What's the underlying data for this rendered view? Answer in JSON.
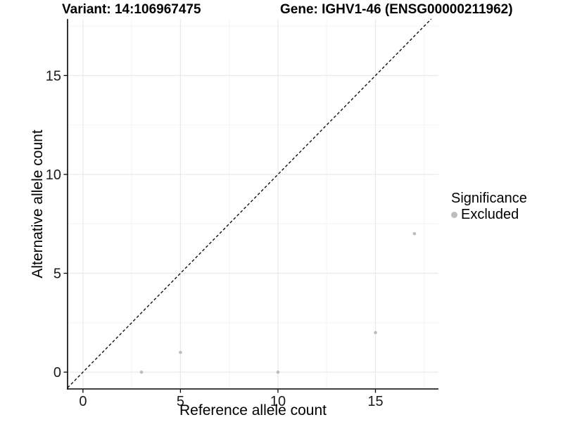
{
  "chart_data": {
    "type": "scatter",
    "title_left": "Variant: 14:106967475",
    "title_right": "Gene: IGHV1-46 (ENSG00000211962)",
    "xlabel": "Reference allele count",
    "ylabel": "Alternative allele count",
    "xlim": [
      -0.79,
      18.23
    ],
    "ylim": [
      -0.85,
      17.86
    ],
    "x_ticks": [
      0,
      5,
      10,
      15
    ],
    "y_ticks": [
      0,
      5,
      10,
      15
    ],
    "x_minor": [
      2.5,
      7.5,
      12.5,
      17.5
    ],
    "y_minor": [
      2.5,
      7.5,
      12.5,
      17.5
    ],
    "grid": true,
    "series": [
      {
        "name": "Excluded",
        "color": "#bdbdbd",
        "points": [
          [
            3,
            0
          ],
          [
            5,
            1
          ],
          [
            10,
            0
          ],
          [
            15,
            2
          ],
          [
            17,
            7
          ]
        ]
      }
    ],
    "identity_line": {
      "type": "y=x",
      "style": "dashed",
      "color": "#111111"
    },
    "legend": {
      "title": "Significance",
      "position": "right",
      "items": [
        {
          "label": "Excluded",
          "color": "#bdbdbd"
        }
      ]
    },
    "colors": {
      "background": "#ffffff",
      "grid_major": "#e9e9e9",
      "grid_minor": "#f4f4f4",
      "axis_line": "#000000",
      "tick_text": "#1a1a1a",
      "point": "#bdbdbd"
    }
  }
}
